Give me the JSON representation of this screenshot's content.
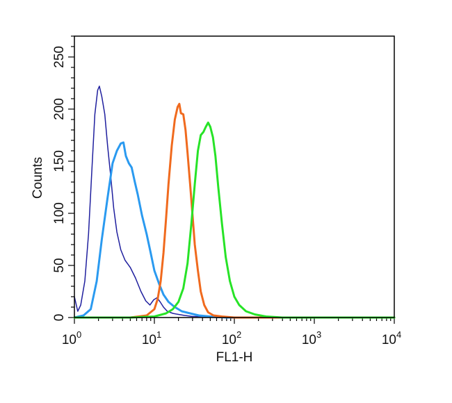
{
  "chart_data": {
    "type": "line",
    "xlabel": "FL1-H",
    "ylabel": "Counts",
    "xscale": "log",
    "xlim": [
      1,
      10000
    ],
    "ylim": [
      0,
      270
    ],
    "x_ticks": [
      {
        "value": 1,
        "base": "10",
        "exp": "0"
      },
      {
        "value": 10,
        "base": "10",
        "exp": "1"
      },
      {
        "value": 100,
        "base": "10",
        "exp": "2"
      },
      {
        "value": 1000,
        "base": "10",
        "exp": "3"
      },
      {
        "value": 10000,
        "base": "10",
        "exp": "4"
      }
    ],
    "y_ticks": [
      {
        "value": 0,
        "label": "0"
      },
      {
        "value": 50,
        "label": "50"
      },
      {
        "value": 100,
        "label": "100"
      },
      {
        "value": 150,
        "label": "150"
      },
      {
        "value": 200,
        "label": "200"
      },
      {
        "value": 250,
        "label": "250"
      }
    ],
    "grid": false,
    "series": [
      {
        "color": "#1f1f9e",
        "x": [
          1.0,
          1.1,
          1.2,
          1.35,
          1.5,
          1.65,
          1.8,
          1.95,
          2.05,
          2.2,
          2.4,
          2.6,
          2.85,
          3.1,
          3.4,
          3.8,
          4.3,
          5.0,
          5.8,
          6.8,
          7.8,
          8.8,
          9.8,
          10.8,
          11.8,
          13.0,
          14.5,
          17.0,
          20.0,
          24.0,
          30.0,
          40.0,
          60.0,
          100.0,
          1000.0,
          10000.0
        ],
        "y": [
          20,
          6,
          12,
          35,
          80,
          140,
          195,
          218,
          222,
          212,
          195,
          165,
          135,
          105,
          82,
          65,
          55,
          48,
          38,
          25,
          16,
          12,
          17,
          19,
          15,
          10,
          6,
          4,
          3,
          2,
          1,
          1,
          0,
          0,
          0,
          0
        ]
      },
      {
        "color": "#2a9af0",
        "x": [
          1.0,
          1.3,
          1.6,
          1.9,
          2.2,
          2.6,
          3.0,
          3.4,
          3.8,
          4.1,
          4.4,
          4.8,
          5.2,
          5.7,
          6.2,
          7.0,
          8.0,
          9.0,
          10.0,
          11.5,
          13.0,
          15.0,
          18.0,
          22.0,
          28.0,
          36.0,
          50.0,
          80.0,
          200.0,
          10000.0
        ],
        "y": [
          0,
          2,
          8,
          35,
          75,
          115,
          148,
          160,
          167,
          168,
          155,
          148,
          144,
          130,
          118,
          98,
          80,
          62,
          45,
          32,
          22,
          15,
          10,
          6,
          4,
          2,
          1,
          0,
          0,
          0
        ]
      },
      {
        "color": "#f06a1e",
        "x": [
          1.0,
          5.0,
          8.0,
          10.0,
          11.0,
          12.0,
          13.0,
          14.0,
          15.0,
          16.5,
          18.0,
          19.5,
          20.5,
          21.5,
          23.0,
          24.5,
          26.0,
          28.0,
          30.0,
          32.0,
          35.0,
          38.0,
          42.0,
          47.0,
          55.0,
          70.0,
          100.0,
          10000.0
        ],
        "y": [
          0,
          0,
          2,
          8,
          18,
          35,
          62,
          95,
          128,
          165,
          190,
          202,
          205,
          196,
          195,
          180,
          158,
          128,
          98,
          70,
          45,
          25,
          12,
          5,
          2,
          1,
          0,
          0
        ]
      },
      {
        "color": "#27e327",
        "x": [
          1.0,
          5.0,
          10.0,
          14.0,
          17.0,
          20.0,
          23.0,
          26.0,
          29.0,
          32.0,
          35.0,
          38.0,
          41.0,
          44.0,
          47.0,
          50.0,
          54.0,
          58.0,
          63.0,
          70.0,
          78.0,
          88.0,
          100.0,
          115.0,
          140.0,
          180.0,
          250.0,
          400.0,
          10000.0
        ],
        "y": [
          0,
          0,
          1,
          4,
          8,
          15,
          28,
          52,
          90,
          128,
          160,
          175,
          178,
          183,
          187,
          183,
          173,
          155,
          125,
          90,
          58,
          35,
          20,
          12,
          6,
          3,
          1,
          0,
          0
        ]
      }
    ]
  }
}
